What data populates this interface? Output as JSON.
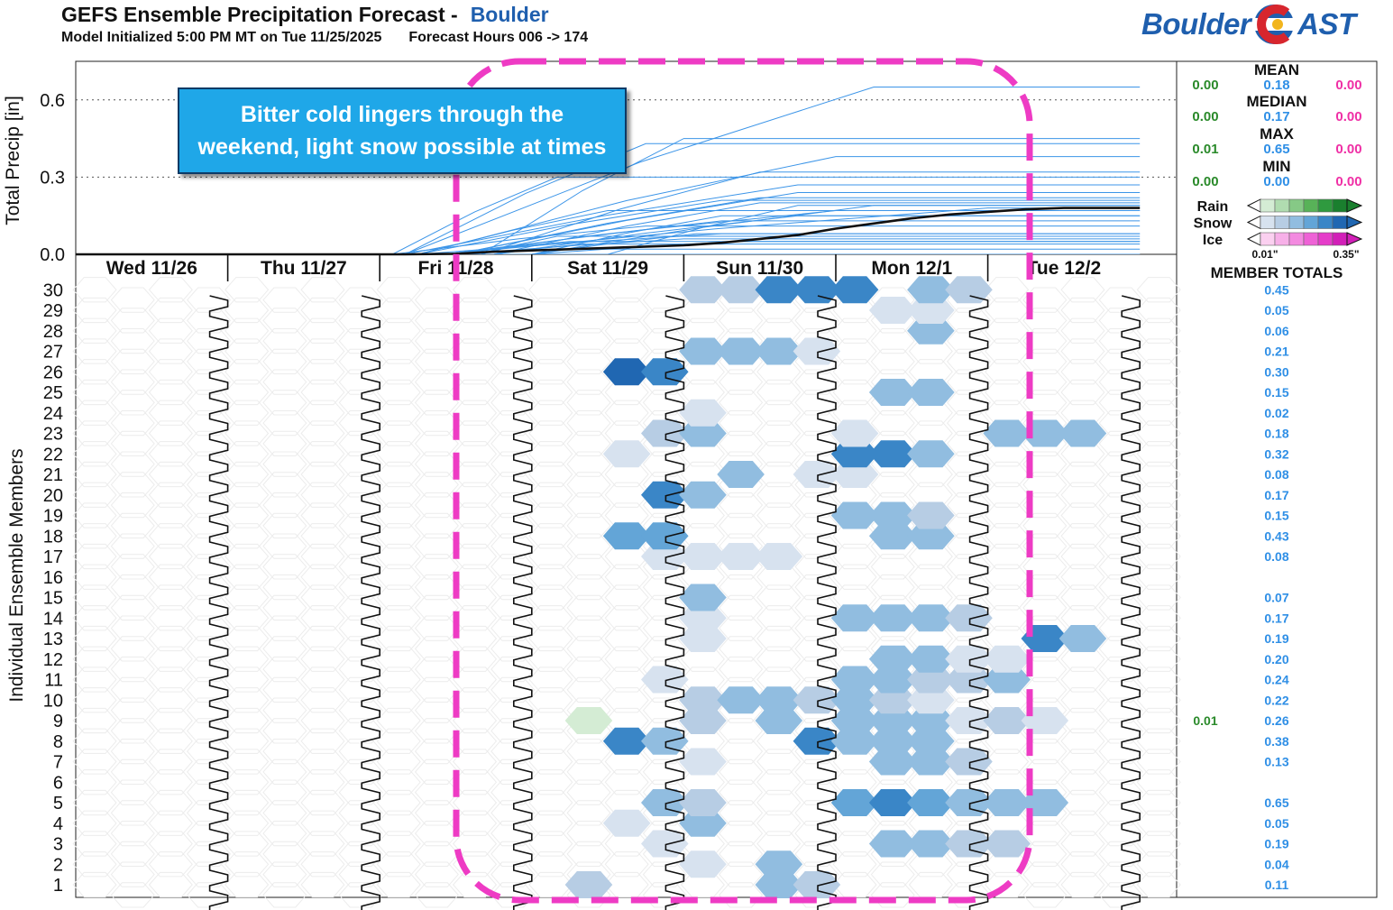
{
  "header": {
    "title": "GEFS Ensemble Precipitation Forecast -",
    "location": "Boulder",
    "initialized": "Model Initialized 5:00 PM MT on Tue 11/25/2025",
    "forecast_hours": "Forecast Hours 006 -> 174"
  },
  "logo": {
    "left": "Boulder",
    "right": "AST",
    "colors": {
      "blue": "#1f5fae",
      "red": "#d7262e",
      "gold": "#f2b51d"
    }
  },
  "annotation": {
    "line1": "Bitter cold lingers through the",
    "line2": "weekend, light snow possible at times"
  },
  "stats": {
    "labels": [
      "MEAN",
      "MEDIAN",
      "MAX",
      "MIN"
    ],
    "rows": [
      {
        "rain": "0.00",
        "snow": "0.18",
        "ice": "0.00"
      },
      {
        "rain": "0.00",
        "snow": "0.17",
        "ice": "0.00"
      },
      {
        "rain": "0.01",
        "snow": "0.65",
        "ice": "0.00"
      },
      {
        "rain": "0.00",
        "snow": "0.00",
        "ice": "0.00"
      }
    ],
    "colors": {
      "rain": "#2a8a2a",
      "snow": "#2f8fe6",
      "ice": "#ef2fa5"
    }
  },
  "legend": {
    "types": [
      "Rain",
      "Snow",
      "Ice"
    ],
    "min_label": "0.01\"",
    "max_label": "0.35\"",
    "rain_colors": [
      "#d4ecd4",
      "#b0dcb0",
      "#86c986",
      "#58b258",
      "#2f9a3f",
      "#1a7f2e"
    ],
    "snow_colors": [
      "#d7e2ef",
      "#b7cde4",
      "#91bde0",
      "#63a5d7",
      "#3a86c7",
      "#2067b2"
    ],
    "ice_colors": [
      "#fbd0f0",
      "#f7b0e8",
      "#f38ae0",
      "#ee62d6",
      "#e53cc9",
      "#d21fb8"
    ]
  },
  "member_totals": {
    "title": "MEMBER TOTALS",
    "snow": [
      "0.11",
      "0.04",
      "0.19",
      "0.05",
      "0.65",
      "",
      "0.13",
      "0.38",
      "0.26",
      "0.22",
      "0.24",
      "0.20",
      "0.19",
      "0.17",
      "0.07",
      "",
      "0.08",
      "0.43",
      "0.15",
      "0.17",
      "0.08",
      "0.32",
      "0.18",
      "0.02",
      "0.15",
      "0.30",
      "0.21",
      "0.06",
      "0.05",
      "0.45"
    ],
    "rain": [
      "",
      "",
      "",
      "",
      "",
      "",
      "",
      "",
      "0.01",
      "",
      "",
      "",
      "",
      "",
      "",
      "",
      "",
      "",
      "",
      "",
      "",
      "",
      "",
      "",
      "",
      "",
      "",
      "",
      "",
      ""
    ]
  },
  "chart_data": {
    "type": "heatmap",
    "title": "GEFS Ensemble Precipitation Forecast",
    "top_panel": {
      "type": "line",
      "ylabel": "Total Precip [in]",
      "ylim": [
        0,
        0.75
      ],
      "yticks": [
        "0.0",
        "0.3",
        "0.6"
      ],
      "ytick_values": [
        0,
        0.3,
        0.6
      ],
      "gridlines": [
        0.3,
        0.6
      ],
      "x_hours": [
        6,
        174
      ],
      "mean_series": {
        "name": "MEAN",
        "x": [
          6,
          54,
          58,
          66,
          72,
          78,
          84,
          90,
          96,
          102,
          108,
          114,
          120,
          126,
          132,
          138,
          144,
          150,
          156,
          162,
          174
        ],
        "y": [
          0,
          0,
          0,
          0.002,
          0.01,
          0.015,
          0.02,
          0.025,
          0.03,
          0.035,
          0.045,
          0.06,
          0.075,
          0.1,
          0.12,
          0.14,
          0.155,
          0.165,
          0.175,
          0.18,
          0.18
        ]
      },
      "member_final_totals": [
        0.11,
        0.04,
        0.19,
        0.05,
        0.65,
        0.0,
        0.13,
        0.38,
        0.27,
        0.22,
        0.24,
        0.2,
        0.19,
        0.17,
        0.07,
        0.0,
        0.08,
        0.43,
        0.15,
        0.17,
        0.08,
        0.32,
        0.18,
        0.02,
        0.15,
        0.3,
        0.21,
        0.06,
        0.05,
        0.45
      ],
      "member_start_hours": [
        56,
        72,
        90,
        64,
        58,
        0,
        66,
        60,
        58,
        66,
        66,
        72,
        78,
        64,
        70,
        0,
        60,
        58,
        72,
        60,
        78,
        70,
        64,
        66,
        78,
        56,
        60,
        66,
        78,
        70
      ],
      "member_end_hours": [
        96,
        86,
        120,
        84,
        132,
        0,
        108,
        126,
        120,
        114,
        120,
        114,
        132,
        126,
        82,
        0,
        108,
        96,
        120,
        90,
        104,
        114,
        150,
        84,
        108,
        82,
        108,
        102,
        110,
        102
      ]
    },
    "days": [
      "Wed 11/26",
      "Thu 11/27",
      "Fri 11/28",
      "Sat 11/29",
      "Sun 11/30",
      "Mon 12/1",
      "Tue 12/2"
    ],
    "ylabel": "Individual Ensemble Members",
    "members": [
      1,
      2,
      3,
      4,
      5,
      6,
      7,
      8,
      9,
      10,
      11,
      12,
      13,
      14,
      15,
      16,
      17,
      18,
      19,
      20,
      21,
      22,
      23,
      24,
      25,
      26,
      27,
      28,
      29,
      30
    ],
    "cells_note": "value in inches per 6-hr step; k = step index from forecast start (0 = hour 6)",
    "cells": [
      {
        "m": 1,
        "k": 13,
        "v": 0.03
      },
      {
        "m": 1,
        "k": 18,
        "v": 0.05
      },
      {
        "m": 1,
        "k": 19,
        "v": 0.03
      },
      {
        "m": 2,
        "k": 16,
        "v": 0.02
      },
      {
        "m": 2,
        "k": 18,
        "v": 0.05
      },
      {
        "m": 3,
        "k": 15,
        "v": 0.02
      },
      {
        "m": 3,
        "k": 21,
        "v": 0.04
      },
      {
        "m": 3,
        "k": 22,
        "v": 0.05
      },
      {
        "m": 3,
        "k": 23,
        "v": 0.03
      },
      {
        "m": 3,
        "k": 24,
        "v": 0.03
      },
      {
        "m": 4,
        "k": 14,
        "v": 0.02
      },
      {
        "m": 4,
        "k": 16,
        "v": 0.04
      },
      {
        "m": 5,
        "k": 15,
        "v": 0.05
      },
      {
        "m": 5,
        "k": 16,
        "v": 0.03
      },
      {
        "m": 5,
        "k": 20,
        "v": 0.09
      },
      {
        "m": 5,
        "k": 21,
        "v": 0.1
      },
      {
        "m": 5,
        "k": 22,
        "v": 0.07
      },
      {
        "m": 5,
        "k": 23,
        "v": 0.05
      },
      {
        "m": 5,
        "k": 24,
        "v": 0.05
      },
      {
        "m": 5,
        "k": 25,
        "v": 0.05
      },
      {
        "m": 7,
        "k": 16,
        "v": 0.02
      },
      {
        "m": 7,
        "k": 21,
        "v": 0.05
      },
      {
        "m": 7,
        "k": 22,
        "v": 0.05
      },
      {
        "m": 7,
        "k": 23,
        "v": 0.03
      },
      {
        "m": 8,
        "k": 14,
        "v": 0.1
      },
      {
        "m": 8,
        "k": 15,
        "v": 0.05
      },
      {
        "m": 8,
        "k": 19,
        "v": 0.1
      },
      {
        "m": 8,
        "k": 20,
        "v": 0.05
      },
      {
        "m": 8,
        "k": 21,
        "v": 0.05
      },
      {
        "m": 8,
        "k": 22,
        "v": 0.05
      },
      {
        "m": 9,
        "k": 13,
        "v": 0.01,
        "t": "rain"
      },
      {
        "m": 9,
        "k": 16,
        "v": 0.03
      },
      {
        "m": 9,
        "k": 18,
        "v": 0.06
      },
      {
        "m": 9,
        "k": 20,
        "v": 0.05
      },
      {
        "m": 9,
        "k": 21,
        "v": 0.05
      },
      {
        "m": 9,
        "k": 22,
        "v": 0.04
      },
      {
        "m": 9,
        "k": 23,
        "v": 0.02
      },
      {
        "m": 9,
        "k": 24,
        "v": 0.03
      },
      {
        "m": 9,
        "k": 25,
        "v": 0.02
      },
      {
        "m": 10,
        "k": 16,
        "v": 0.03
      },
      {
        "m": 10,
        "k": 17,
        "v": 0.04
      },
      {
        "m": 10,
        "k": 18,
        "v": 0.04
      },
      {
        "m": 10,
        "k": 19,
        "v": 0.03
      },
      {
        "m": 10,
        "k": 20,
        "v": 0.04
      },
      {
        "m": 10,
        "k": 21,
        "v": 0.03
      },
      {
        "m": 10,
        "k": 22,
        "v": 0.02
      },
      {
        "m": 11,
        "k": 15,
        "v": 0.02
      },
      {
        "m": 11,
        "k": 20,
        "v": 0.04
      },
      {
        "m": 11,
        "k": 21,
        "v": 0.04
      },
      {
        "m": 11,
        "k": 22,
        "v": 0.03
      },
      {
        "m": 11,
        "k": 23,
        "v": 0.03
      },
      {
        "m": 11,
        "k": 24,
        "v": 0.04
      },
      {
        "m": 12,
        "k": 21,
        "v": 0.05
      },
      {
        "m": 12,
        "k": 22,
        "v": 0.05
      },
      {
        "m": 12,
        "k": 23,
        "v": 0.02
      },
      {
        "m": 12,
        "k": 24,
        "v": 0.02
      },
      {
        "m": 13,
        "k": 16,
        "v": 0.02
      },
      {
        "m": 13,
        "k": 25,
        "v": 0.1
      },
      {
        "m": 13,
        "k": 26,
        "v": 0.05
      },
      {
        "m": 14,
        "k": 16,
        "v": 0.02
      },
      {
        "m": 14,
        "k": 20,
        "v": 0.04
      },
      {
        "m": 14,
        "k": 21,
        "v": 0.05
      },
      {
        "m": 14,
        "k": 22,
        "v": 0.05
      },
      {
        "m": 14,
        "k": 23,
        "v": 0.03
      },
      {
        "m": 15,
        "k": 16,
        "v": 0.05
      },
      {
        "m": 17,
        "k": 15,
        "v": 0.02
      },
      {
        "m": 17,
        "k": 16,
        "v": 0.02
      },
      {
        "m": 17,
        "k": 17,
        "v": 0.02
      },
      {
        "m": 17,
        "k": 18,
        "v": 0.02
      },
      {
        "m": 18,
        "k": 14,
        "v": 0.08
      },
      {
        "m": 18,
        "k": 15,
        "v": 0.08
      },
      {
        "m": 18,
        "k": 21,
        "v": 0.04
      },
      {
        "m": 18,
        "k": 22,
        "v": 0.04
      },
      {
        "m": 19,
        "k": 20,
        "v": 0.05
      },
      {
        "m": 19,
        "k": 21,
        "v": 0.05
      },
      {
        "m": 19,
        "k": 22,
        "v": 0.03
      },
      {
        "m": 20,
        "k": 15,
        "v": 0.1
      },
      {
        "m": 20,
        "k": 16,
        "v": 0.05
      },
      {
        "m": 21,
        "k": 17,
        "v": 0.04
      },
      {
        "m": 21,
        "k": 19,
        "v": 0.02
      },
      {
        "m": 21,
        "k": 20,
        "v": 0.02
      },
      {
        "m": 22,
        "k": 14,
        "v": 0.02
      },
      {
        "m": 22,
        "k": 20,
        "v": 0.1
      },
      {
        "m": 22,
        "k": 21,
        "v": 0.1
      },
      {
        "m": 22,
        "k": 22,
        "v": 0.05
      },
      {
        "m": 23,
        "k": 15,
        "v": 0.03
      },
      {
        "m": 23,
        "k": 16,
        "v": 0.04
      },
      {
        "m": 23,
        "k": 20,
        "v": 0.02
      },
      {
        "m": 23,
        "k": 24,
        "v": 0.05
      },
      {
        "m": 23,
        "k": 25,
        "v": 0.05
      },
      {
        "m": 23,
        "k": 26,
        "v": 0.05
      },
      {
        "m": 24,
        "k": 16,
        "v": 0.02
      },
      {
        "m": 25,
        "k": 21,
        "v": 0.05
      },
      {
        "m": 25,
        "k": 22,
        "v": 0.05
      },
      {
        "m": 26,
        "k": 14,
        "v": 0.2
      },
      {
        "m": 26,
        "k": 15,
        "v": 0.1
      },
      {
        "m": 27,
        "k": 16,
        "v": 0.05
      },
      {
        "m": 27,
        "k": 17,
        "v": 0.05
      },
      {
        "m": 27,
        "k": 18,
        "v": 0.05
      },
      {
        "m": 27,
        "k": 19,
        "v": 0.02
      },
      {
        "m": 28,
        "k": 22,
        "v": 0.05
      },
      {
        "m": 29,
        "k": 21,
        "v": 0.02
      },
      {
        "m": 29,
        "k": 22,
        "v": 0.02
      },
      {
        "m": 30,
        "k": 16,
        "v": 0.03
      },
      {
        "m": 30,
        "k": 17,
        "v": 0.03
      },
      {
        "m": 30,
        "k": 18,
        "v": 0.1
      },
      {
        "m": 30,
        "k": 19,
        "v": 0.1
      },
      {
        "m": 30,
        "k": 20,
        "v": 0.1
      },
      {
        "m": 30,
        "k": 22,
        "v": 0.04
      },
      {
        "m": 30,
        "k": 23,
        "v": 0.03
      }
    ]
  }
}
